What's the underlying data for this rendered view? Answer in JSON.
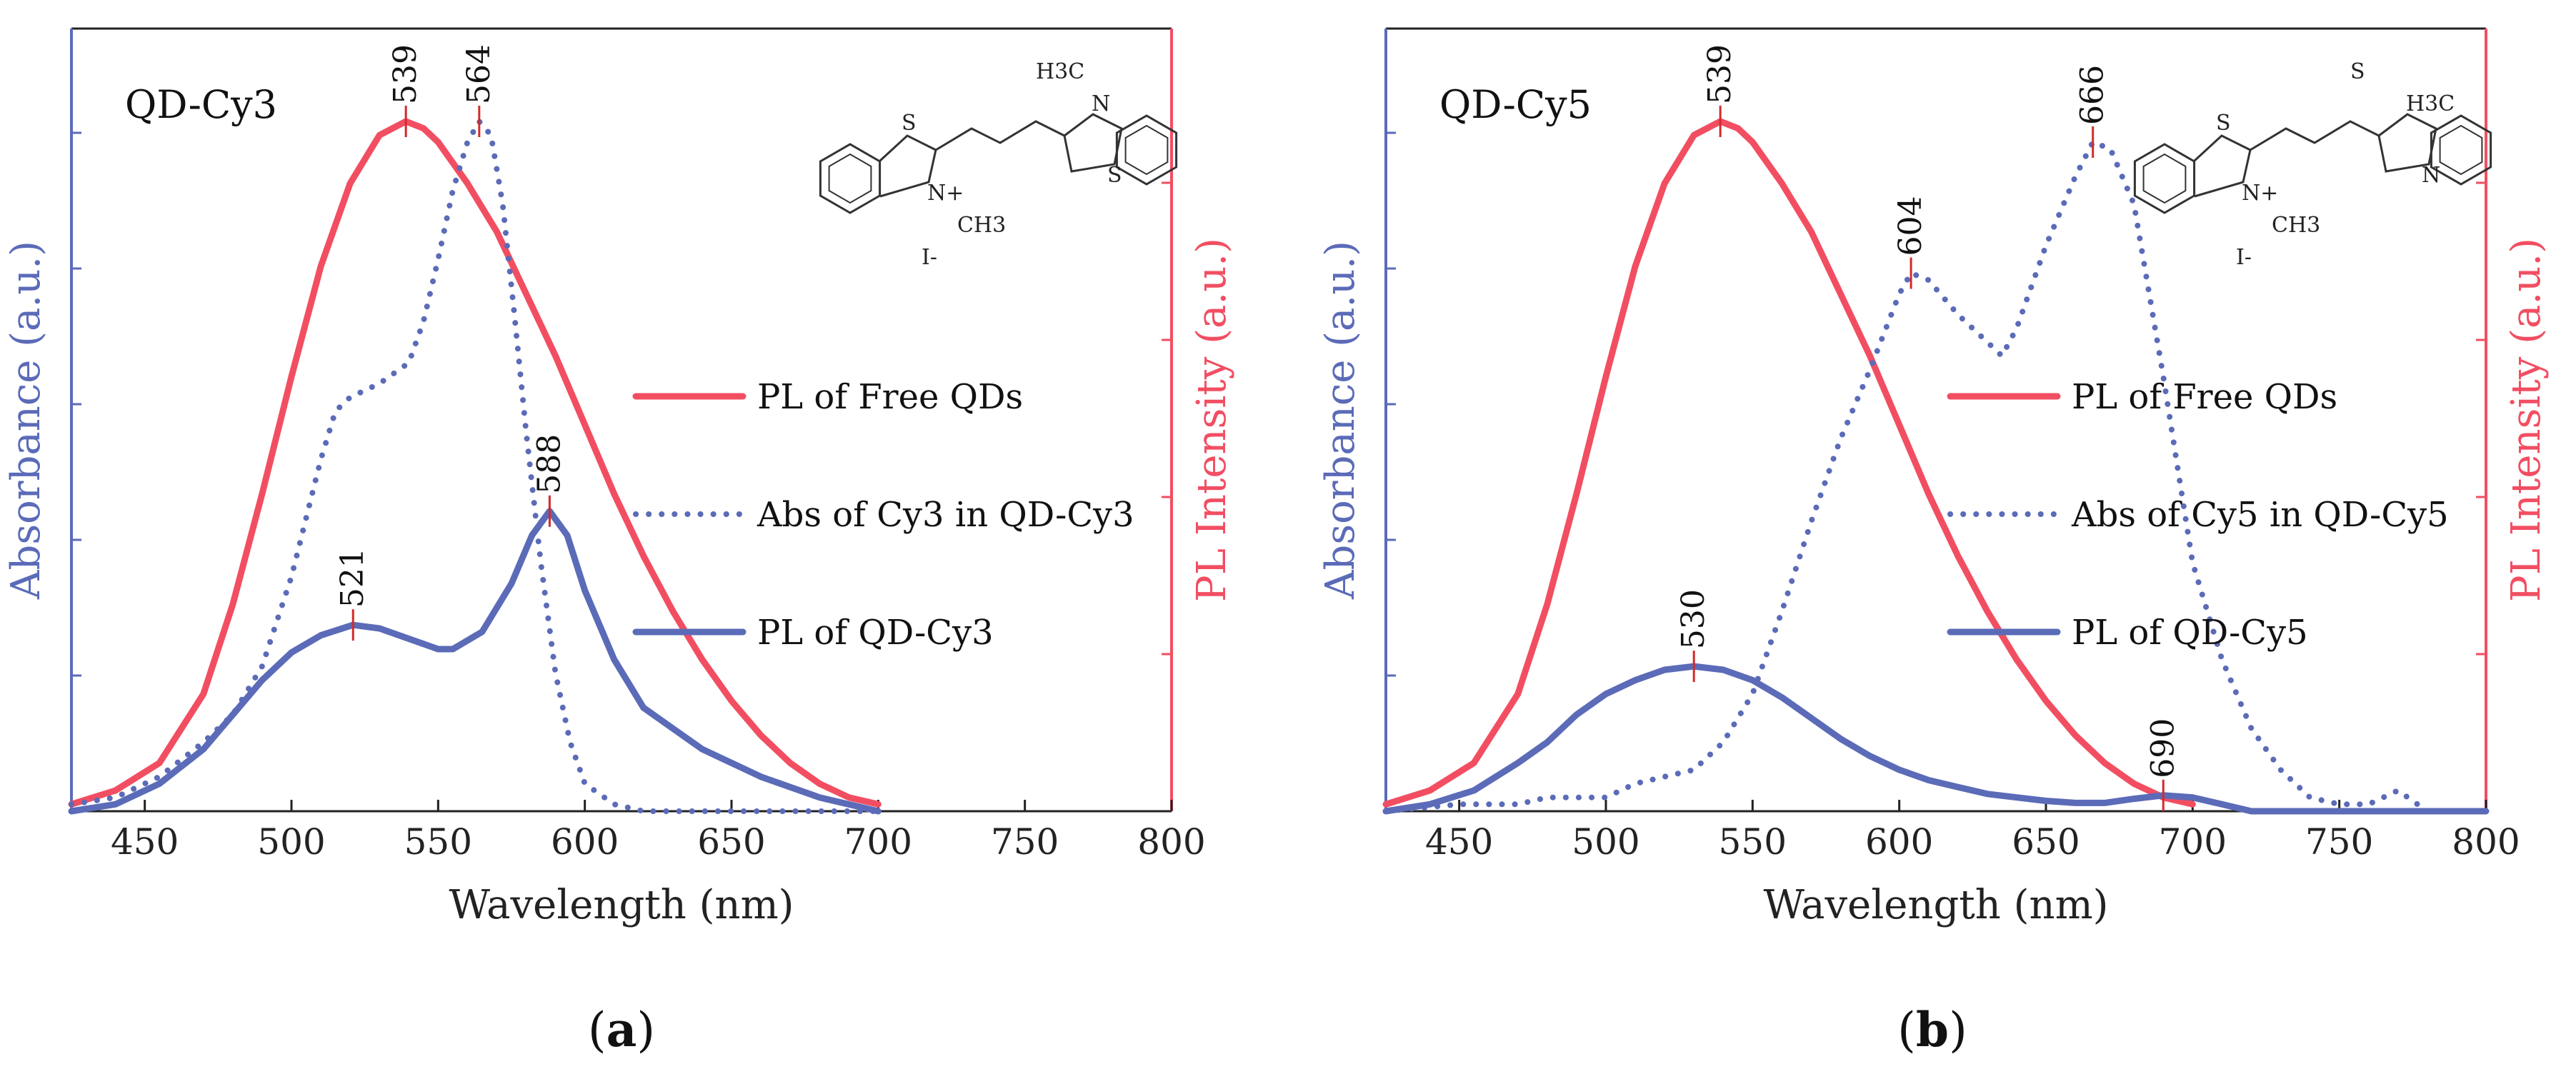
{
  "chart_data": [
    {
      "type": "line",
      "panel_label": "a",
      "title": "QD-Cy3",
      "xlabel": "Wavelength (nm)",
      "ylabel_left": "Absorbance (a.u.)",
      "ylabel_right": "PL Intensity (a.u.)",
      "xlim": [
        425,
        800
      ],
      "ylim": [
        0,
        1.0
      ],
      "xticks": [
        450,
        500,
        550,
        600,
        650,
        700,
        750,
        800
      ],
      "legend_position": "right-middle",
      "series": [
        {
          "name": "PL of Free QDs",
          "style": "solid",
          "color": "#f24e62",
          "x": [
            425,
            440,
            455,
            470,
            480,
            490,
            500,
            510,
            520,
            530,
            539,
            545,
            550,
            560,
            570,
            580,
            590,
            600,
            610,
            620,
            630,
            640,
            650,
            660,
            670,
            680,
            690,
            700
          ],
          "y": [
            0.01,
            0.03,
            0.07,
            0.17,
            0.3,
            0.46,
            0.63,
            0.79,
            0.91,
            0.98,
            1.0,
            0.99,
            0.97,
            0.91,
            0.84,
            0.75,
            0.66,
            0.56,
            0.46,
            0.37,
            0.29,
            0.22,
            0.16,
            0.11,
            0.07,
            0.04,
            0.02,
            0.01
          ]
        },
        {
          "name": "Abs of Cy3 in QD-Cy3",
          "style": "dotted",
          "color": "#5b6bb8",
          "x": [
            425,
            440,
            455,
            470,
            480,
            490,
            500,
            510,
            515,
            520,
            530,
            540,
            545,
            550,
            555,
            560,
            564,
            568,
            572,
            576,
            580,
            585,
            590,
            595,
            600,
            610,
            620,
            640,
            660,
            680,
            700
          ],
          "y": [
            0.01,
            0.02,
            0.05,
            0.1,
            0.14,
            0.21,
            0.34,
            0.51,
            0.58,
            0.6,
            0.62,
            0.65,
            0.71,
            0.8,
            0.9,
            0.97,
            1.0,
            0.98,
            0.88,
            0.72,
            0.55,
            0.36,
            0.2,
            0.1,
            0.04,
            0.01,
            0.0,
            0.0,
            0.0,
            0.0,
            0.0
          ]
        },
        {
          "name": "PL of QD-Cy3",
          "style": "solid",
          "color": "#5b6bb8",
          "x": [
            425,
            440,
            455,
            470,
            480,
            490,
            500,
            510,
            521,
            530,
            540,
            550,
            555,
            565,
            575,
            582,
            588,
            594,
            600,
            610,
            620,
            640,
            660,
            680,
            700
          ],
          "y": [
            0.0,
            0.01,
            0.04,
            0.09,
            0.14,
            0.19,
            0.23,
            0.255,
            0.27,
            0.265,
            0.25,
            0.235,
            0.235,
            0.26,
            0.33,
            0.4,
            0.435,
            0.4,
            0.32,
            0.22,
            0.15,
            0.09,
            0.05,
            0.02,
            0.0
          ]
        }
      ],
      "peak_labels": [
        {
          "text": "539",
          "x": 539,
          "series": "PL of Free QDs"
        },
        {
          "text": "564",
          "x": 564,
          "series": "Abs of Cy3 in QD-Cy3"
        },
        {
          "text": "588",
          "x": 588,
          "series": "PL of QD-Cy3"
        },
        {
          "text": "521",
          "x": 521,
          "series": "PL of QD-Cy3"
        }
      ],
      "molecule": {
        "labels": [
          "S",
          "N+",
          "N",
          "S",
          "H3C",
          "CH3",
          "I-"
        ]
      }
    },
    {
      "type": "line",
      "panel_label": "b",
      "title": "QD-Cy5",
      "xlabel": "Wavelength (nm)",
      "ylabel_left": "Absorbance (a.u.)",
      "ylabel_right": "PL Intensity (a.u.)",
      "xlim": [
        425,
        800
      ],
      "ylim": [
        0,
        1.0
      ],
      "xticks": [
        450,
        500,
        550,
        600,
        650,
        700,
        750,
        800
      ],
      "legend_position": "right-middle",
      "series": [
        {
          "name": "PL of Free QDs",
          "style": "solid",
          "color": "#f24e62",
          "x": [
            425,
            440,
            455,
            470,
            480,
            490,
            500,
            510,
            520,
            530,
            539,
            545,
            550,
            560,
            570,
            580,
            590,
            600,
            610,
            620,
            630,
            640,
            650,
            660,
            670,
            680,
            690,
            700
          ],
          "y": [
            0.01,
            0.03,
            0.07,
            0.17,
            0.3,
            0.46,
            0.63,
            0.79,
            0.91,
            0.98,
            1.0,
            0.99,
            0.97,
            0.91,
            0.84,
            0.75,
            0.66,
            0.56,
            0.46,
            0.37,
            0.29,
            0.22,
            0.16,
            0.11,
            0.07,
            0.04,
            0.02,
            0.01
          ]
        },
        {
          "name": "Abs of Cy5 in QD-Cy5",
          "style": "dotted",
          "color": "#5b6bb8",
          "x": [
            425,
            450,
            470,
            480,
            490,
            500,
            510,
            520,
            530,
            540,
            550,
            560,
            570,
            580,
            590,
            600,
            604,
            610,
            620,
            630,
            635,
            640,
            650,
            660,
            666,
            672,
            680,
            690,
            700,
            710,
            720,
            730,
            740,
            750,
            760,
            770,
            780,
            800
          ],
          "y": [
            0.0,
            0.01,
            0.01,
            0.02,
            0.02,
            0.02,
            0.04,
            0.05,
            0.06,
            0.1,
            0.17,
            0.29,
            0.42,
            0.54,
            0.64,
            0.75,
            0.78,
            0.77,
            0.72,
            0.68,
            0.66,
            0.7,
            0.82,
            0.92,
            0.97,
            0.96,
            0.88,
            0.63,
            0.36,
            0.22,
            0.12,
            0.06,
            0.02,
            0.01,
            0.01,
            0.03,
            0.0,
            0.0
          ]
        },
        {
          "name": "PL of QD-Cy5",
          "style": "solid",
          "color": "#5b6bb8",
          "x": [
            425,
            440,
            455,
            470,
            480,
            490,
            500,
            510,
            520,
            530,
            540,
            550,
            560,
            570,
            580,
            590,
            600,
            610,
            620,
            630,
            640,
            650,
            660,
            670,
            680,
            690,
            700,
            710,
            720,
            800
          ],
          "y": [
            0.0,
            0.01,
            0.03,
            0.07,
            0.1,
            0.14,
            0.17,
            0.19,
            0.205,
            0.21,
            0.205,
            0.19,
            0.165,
            0.135,
            0.105,
            0.08,
            0.06,
            0.045,
            0.035,
            0.025,
            0.02,
            0.015,
            0.012,
            0.012,
            0.018,
            0.023,
            0.02,
            0.01,
            0.0,
            0.0
          ]
        }
      ],
      "peak_labels": [
        {
          "text": "539",
          "x": 539,
          "series": "PL of Free QDs"
        },
        {
          "text": "604",
          "x": 604,
          "series": "Abs of Cy5 in QD-Cy5"
        },
        {
          "text": "666",
          "x": 666,
          "series": "Abs of Cy5 in QD-Cy5"
        },
        {
          "text": "530",
          "x": 530,
          "series": "PL of QD-Cy5"
        },
        {
          "text": "690",
          "x": 690,
          "series": "PL of QD-Cy5"
        }
      ],
      "molecule": {
        "labels": [
          "S",
          "N+",
          "H3C",
          "N",
          "S",
          "CH3",
          "I-"
        ]
      }
    }
  ]
}
